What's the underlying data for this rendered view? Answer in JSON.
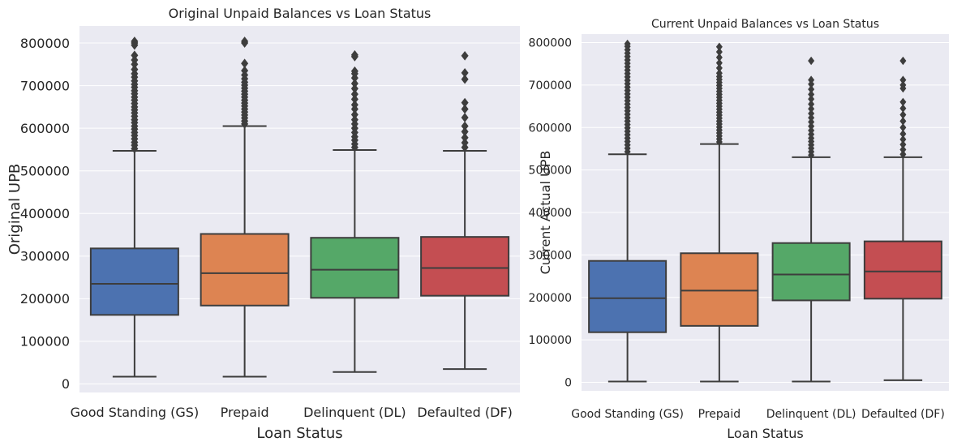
{
  "chart_data": [
    {
      "type": "box",
      "title": "Original Unpaid Balances vs Loan Status",
      "xlabel": "Loan Status",
      "ylabel": "Original UPB",
      "ylim": [
        -20000,
        840000
      ],
      "yticks": [
        0,
        100000,
        200000,
        300000,
        400000,
        500000,
        600000,
        700000,
        800000
      ],
      "ytick_labels": [
        "0",
        "100000",
        "200000",
        "300000",
        "400000",
        "500000",
        "600000",
        "700000",
        "800000"
      ],
      "grid": true,
      "categories": [
        "Good Standing (GS)",
        "Prepaid",
        "Delinquent (DL)",
        "Defaulted (DF)"
      ],
      "colors": [
        "#4c72b0",
        "#dd8452",
        "#55a868",
        "#c44e52"
      ],
      "boxes": [
        {
          "whislo": 17000,
          "q1": 162000,
          "median": 235000,
          "q3": 318000,
          "whishi": 547000,
          "fliers": [
            552000,
            560000,
            567000,
            575000,
            583000,
            590000,
            598000,
            605000,
            613000,
            620000,
            628000,
            636000,
            643000,
            650000,
            658000,
            666000,
            673000,
            681000,
            688000,
            696000,
            703000,
            711000,
            720000,
            728000,
            738000,
            750000,
            760000,
            771000,
            795000,
            800000,
            804000
          ]
        },
        {
          "whislo": 17000,
          "q1": 184000,
          "median": 260000,
          "q3": 352000,
          "whishi": 605000,
          "fliers": [
            610000,
            617000,
            624000,
            631000,
            638000,
            645000,
            652000,
            659000,
            666000,
            673000,
            680000,
            687000,
            694000,
            701000,
            708000,
            716000,
            725000,
            735000,
            752000,
            800000,
            804000
          ]
        },
        {
          "whislo": 28000,
          "q1": 202000,
          "median": 268000,
          "q3": 343000,
          "whishi": 549000,
          "fliers": [
            555000,
            563000,
            572000,
            580000,
            590000,
            600000,
            610000,
            620000,
            632000,
            645000,
            655000,
            668000,
            680000,
            693000,
            705000,
            718000,
            728000,
            734000,
            768000,
            772000
          ]
        },
        {
          "whislo": 35000,
          "q1": 207000,
          "median": 272000,
          "q3": 345000,
          "whishi": 547000,
          "fliers": [
            555000,
            566000,
            578000,
            592000,
            605000,
            625000,
            645000,
            660000,
            715000,
            730000,
            770000
          ]
        }
      ]
    },
    {
      "type": "box",
      "title": "Current Unpaid Balances vs Loan Status",
      "xlabel": "Loan Status",
      "ylabel": "Current Actual UPB",
      "ylim": [
        -20000,
        820000
      ],
      "yticks": [
        0,
        100000,
        200000,
        300000,
        400000,
        500000,
        600000,
        700000,
        800000
      ],
      "ytick_labels": [
        "0",
        "100000",
        "200000",
        "300000",
        "400000",
        "500000",
        "600000",
        "700000",
        "800000"
      ],
      "grid": true,
      "categories": [
        "Good Standing (GS)",
        "Prepaid",
        "Delinquent (DL)",
        "Defaulted (DF)"
      ],
      "colors": [
        "#4c72b0",
        "#dd8452",
        "#55a868",
        "#c44e52"
      ],
      "boxes": [
        {
          "whislo": 2000,
          "q1": 118000,
          "median": 198000,
          "q3": 286000,
          "whishi": 537000,
          "fliers": [
            543000,
            551000,
            559000,
            567000,
            575000,
            583000,
            591000,
            599000,
            607000,
            615000,
            623000,
            631000,
            639000,
            647000,
            655000,
            663000,
            671000,
            679000,
            687000,
            695000,
            703000,
            711000,
            719000,
            727000,
            735000,
            743000,
            751000,
            759000,
            767000,
            775000,
            783000,
            791000,
            797000
          ]
        },
        {
          "whislo": 2000,
          "q1": 133000,
          "median": 216000,
          "q3": 304000,
          "whishi": 561000,
          "fliers": [
            566000,
            573000,
            580000,
            587000,
            594000,
            601000,
            608000,
            615000,
            622000,
            629000,
            636000,
            643000,
            650000,
            657000,
            664000,
            671000,
            678000,
            685000,
            692000,
            699000,
            706000,
            713000,
            720000,
            728000,
            740000,
            752000,
            765000,
            778000,
            790000
          ]
        },
        {
          "whislo": 2000,
          "q1": 193000,
          "median": 254000,
          "q3": 328000,
          "whishi": 530000,
          "fliers": [
            535000,
            543000,
            551000,
            559000,
            567000,
            575000,
            584000,
            593000,
            603000,
            613000,
            623000,
            633000,
            644000,
            655000,
            667000,
            678000,
            690000,
            702000,
            712000,
            757000
          ]
        },
        {
          "whislo": 5000,
          "q1": 197000,
          "median": 261000,
          "q3": 332000,
          "whishi": 530000,
          "fliers": [
            537000,
            548000,
            560000,
            572000,
            585000,
            600000,
            615000,
            630000,
            645000,
            660000,
            692000,
            700000,
            712000,
            757000
          ]
        }
      ]
    }
  ]
}
